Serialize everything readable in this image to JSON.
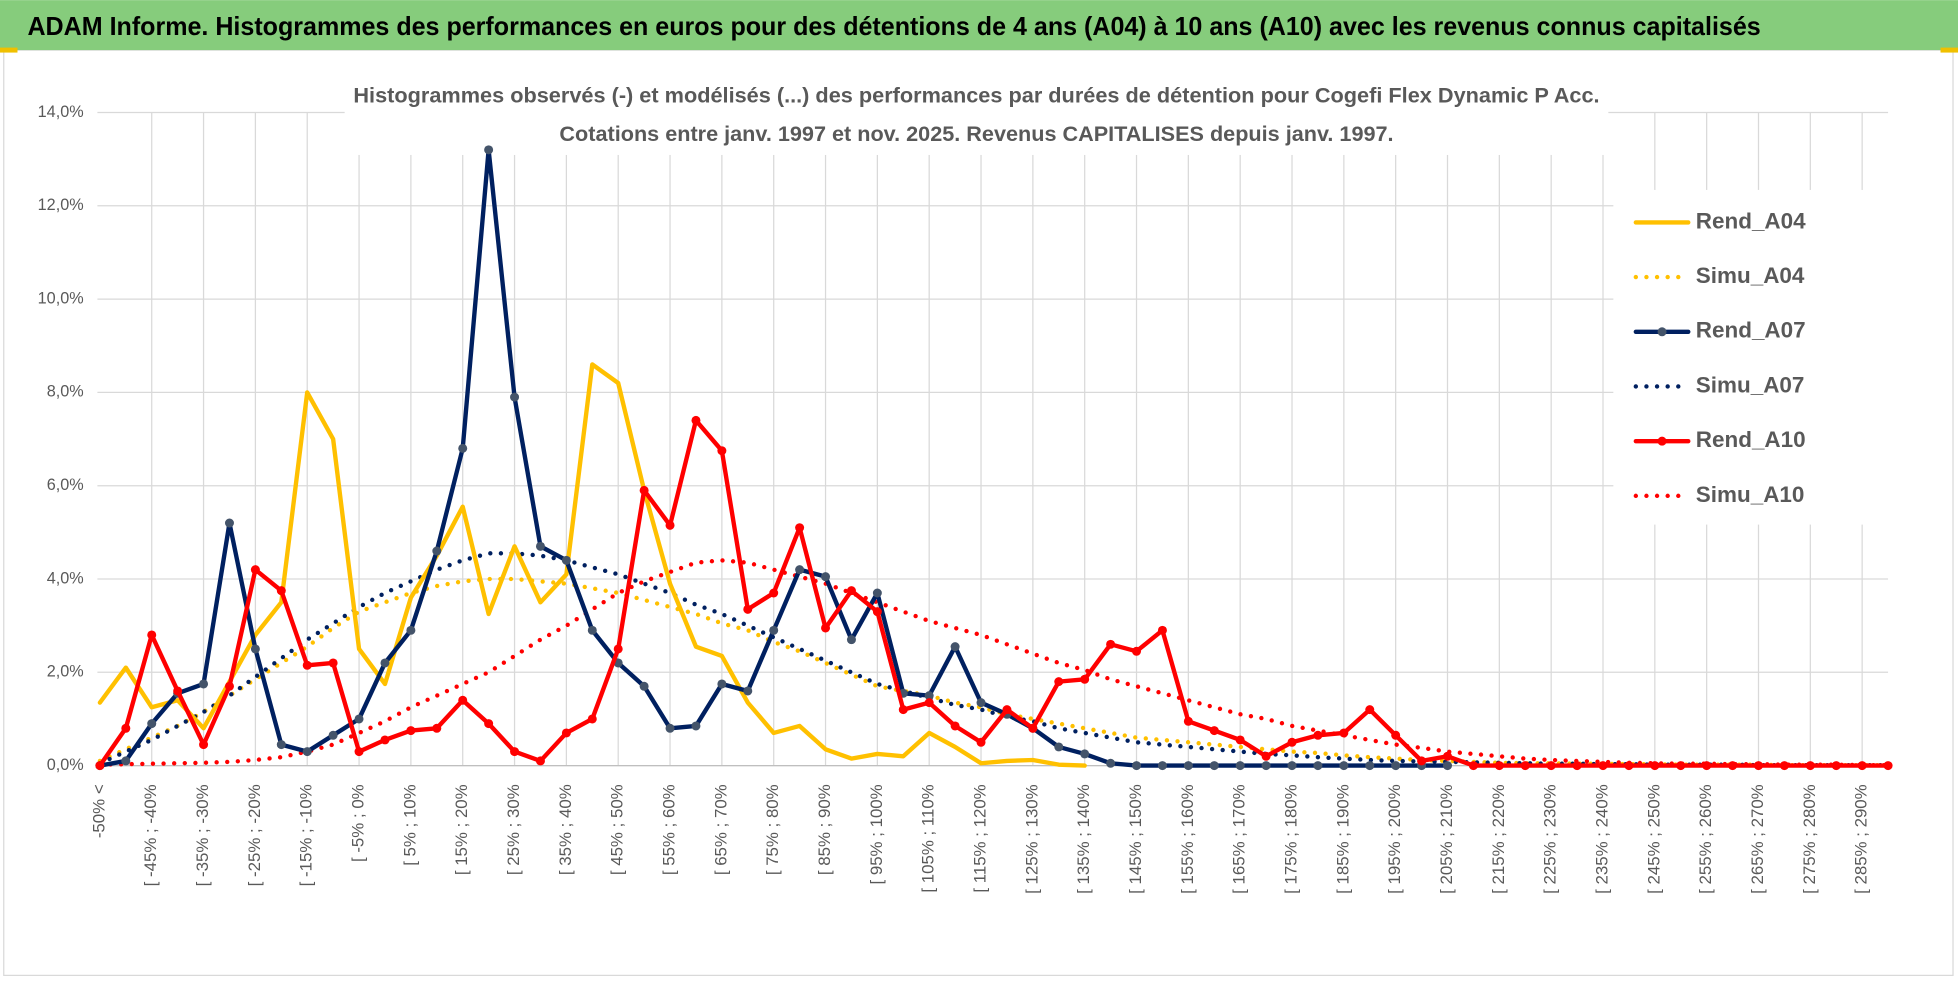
{
  "chart_data": {
    "type": "line",
    "title": "ADAM Informe. Histogrammes des performances en euros pour des détentions de 4 ans (A04) à 10 ans (A10) avec les revenus connus capitalisés",
    "subtitle": [
      "Histogrammes observés (-) et modélisés (...) des performances par durées de détention pour Cogefi Flex Dynamic P Acc.",
      "Cotations entre janv. 1997 et nov. 2025. Revenus CAPITALISES depuis janv. 1997."
    ],
    "categories": [
      "-50% <",
      null,
      "[ -45% ; -40%",
      null,
      "[ -35% ; -30%",
      null,
      "[ -25% ; -20%",
      null,
      "[ -15% ; -10%",
      null,
      "[ -5% ; 0%",
      null,
      "[ 5% ; 10%",
      null,
      "[ 15% ; 20%",
      null,
      "[ 25% ; 30%",
      null,
      "[ 35% ; 40%",
      null,
      "[ 45% ; 50%",
      null,
      "[ 55% ; 60%",
      null,
      "[ 65% ; 70%",
      null,
      "[ 75% ; 80%",
      null,
      "[ 85% ; 90%",
      null,
      "[ 95% ; 100%",
      null,
      "[ 105% ; 110%",
      null,
      "[ 115% ; 120%",
      null,
      "[ 125% ; 130%",
      null,
      "[ 135% ; 140%",
      null,
      "[ 145% ; 150%",
      null,
      "[ 155% ; 160%",
      null,
      "[ 165% ; 170%",
      null,
      "[ 175% ; 180%",
      null,
      "[ 185% ; 190%",
      null,
      "[ 195% ; 200%",
      null,
      "[ 205% ; 210%",
      null,
      "[ 215% ; 220%",
      null,
      "[ 225% ; 230%",
      null,
      "[ 235% ; 240%",
      null,
      "[ 245% ; 250%",
      null,
      "[ 255% ; 260%",
      null,
      "[ 265% ; 270%",
      null,
      "[ 275% ; 280%",
      null,
      "[ 285% ; 290%",
      null
    ],
    "series": [
      {
        "name": "Rend_A04",
        "color": "#ffc000",
        "dash": "solid",
        "marker": false,
        "values": [
          1.35,
          2.1,
          1.25,
          1.4,
          0.8,
          1.8,
          2.8,
          3.5,
          8.0,
          7.0,
          2.5,
          1.75,
          3.6,
          4.5,
          5.55,
          3.25,
          4.7,
          3.5,
          4.1,
          8.6,
          8.2,
          5.9,
          3.9,
          2.55,
          2.35,
          1.35,
          0.7,
          0.85,
          0.35,
          0.15,
          0.25,
          0.2,
          0.7,
          0.4,
          0.05,
          0.1,
          0.12,
          0.02,
          0,
          null,
          null,
          null,
          null,
          null,
          null,
          null,
          null,
          null,
          null,
          null,
          null,
          null,
          null,
          null,
          null,
          null,
          null,
          null,
          null,
          null,
          null,
          null,
          null,
          null,
          null,
          null,
          null,
          null,
          null,
          null
        ]
      },
      {
        "name": "Simu_A04",
        "color": "#ffc000",
        "dash": "dotted",
        "marker": false,
        "values": [
          0.1,
          0.35,
          0.6,
          0.85,
          1.15,
          1.5,
          1.85,
          2.2,
          2.55,
          2.95,
          3.3,
          3.5,
          3.7,
          3.85,
          3.95,
          4.0,
          4.0,
          3.95,
          3.9,
          3.8,
          3.7,
          3.55,
          3.4,
          3.25,
          3.05,
          2.9,
          2.65,
          2.45,
          2.2,
          1.95,
          1.7,
          1.6,
          1.5,
          1.35,
          1.25,
          1.1,
          1.0,
          0.9,
          0.8,
          0.7,
          0.6,
          0.55,
          0.5,
          0.45,
          0.4,
          0.35,
          0.3,
          0.27,
          0.22,
          0.18,
          0.15,
          0.12,
          0.1,
          0.08,
          0.06,
          0.05,
          0.05,
          0.04,
          0.04,
          0.03,
          0.03,
          0.02,
          0.02,
          0.02,
          0.02,
          0.01,
          0.01,
          0.01,
          0.01,
          0.01
        ]
      },
      {
        "name": "Rend_A07",
        "color": "#002060",
        "dash": "solid",
        "marker": true,
        "marker_color": "#44546a",
        "values": [
          0,
          0.1,
          0.9,
          1.55,
          1.75,
          5.2,
          2.5,
          0.45,
          0.3,
          0.65,
          1.0,
          2.2,
          2.9,
          4.6,
          6.8,
          13.2,
          7.9,
          4.7,
          4.4,
          2.9,
          2.2,
          1.7,
          0.8,
          0.85,
          1.75,
          1.6,
          2.9,
          4.2,
          4.05,
          2.7,
          3.7,
          1.55,
          1.5,
          2.55,
          1.35,
          1.1,
          0.8,
          0.4,
          0.25,
          0.05,
          0,
          0,
          0,
          0,
          0,
          0,
          0,
          0,
          0,
          0,
          0,
          0,
          0,
          null,
          null,
          null,
          null,
          null,
          null,
          null,
          null,
          null,
          null,
          null,
          null,
          null,
          null,
          null,
          null,
          null
        ]
      },
      {
        "name": "Simu_A07",
        "color": "#002060",
        "dash": "dotted",
        "marker": false,
        "values": [
          0.05,
          0.3,
          0.55,
          0.85,
          1.15,
          1.5,
          1.9,
          2.3,
          2.7,
          3.05,
          3.4,
          3.7,
          3.95,
          4.2,
          4.4,
          4.55,
          4.55,
          4.5,
          4.4,
          4.25,
          4.1,
          3.9,
          3.7,
          3.45,
          3.25,
          3.0,
          2.75,
          2.5,
          2.25,
          2.0,
          1.75,
          1.6,
          1.45,
          1.3,
          1.2,
          1.05,
          0.95,
          0.8,
          0.7,
          0.6,
          0.5,
          0.45,
          0.4,
          0.35,
          0.3,
          0.25,
          0.22,
          0.18,
          0.15,
          0.12,
          0.1,
          0.09,
          0.08,
          0.07,
          0.06,
          0.05,
          0.04,
          0.04,
          0.03,
          0.03,
          0.02,
          0.02,
          0.02,
          0.02,
          0.01,
          0.01,
          0.01,
          0.01,
          0.01,
          0.01
        ]
      },
      {
        "name": "Rend_A10",
        "color": "#ff0000",
        "dash": "solid",
        "marker": true,
        "marker_color": "#ff0000",
        "values": [
          0,
          0.8,
          2.8,
          1.6,
          0.45,
          1.7,
          4.2,
          3.75,
          2.15,
          2.2,
          0.3,
          0.55,
          0.75,
          0.8,
          1.4,
          0.9,
          0.3,
          0.1,
          0.7,
          1.0,
          2.5,
          5.9,
          5.15,
          7.4,
          6.75,
          3.35,
          3.7,
          5.1,
          2.95,
          3.75,
          3.3,
          1.2,
          1.35,
          0.85,
          0.5,
          1.2,
          0.8,
          1.8,
          1.85,
          2.6,
          2.45,
          2.9,
          0.95,
          0.75,
          0.55,
          0.2,
          0.5,
          0.65,
          0.7,
          1.2,
          0.65,
          0.1,
          0.2,
          0,
          0,
          0,
          0,
          0,
          0,
          0,
          0,
          0,
          0,
          0,
          0,
          0,
          0,
          0,
          0,
          0
        ]
      },
      {
        "name": "Simu_A10",
        "color": "#ff0000",
        "dash": "dotted",
        "marker": false,
        "values": [
          0.02,
          0.03,
          0.04,
          0.05,
          0.06,
          0.08,
          0.12,
          0.18,
          0.3,
          0.45,
          0.7,
          0.95,
          1.25,
          1.5,
          1.75,
          2.0,
          2.35,
          2.7,
          3.0,
          3.35,
          3.7,
          3.95,
          4.15,
          4.35,
          4.4,
          4.35,
          4.2,
          4.05,
          3.9,
          3.7,
          3.5,
          3.3,
          3.1,
          2.95,
          2.8,
          2.6,
          2.4,
          2.2,
          2.05,
          1.85,
          1.7,
          1.55,
          1.4,
          1.25,
          1.1,
          1.0,
          0.85,
          0.75,
          0.65,
          0.55,
          0.45,
          0.38,
          0.3,
          0.25,
          0.2,
          0.15,
          0.12,
          0.1,
          0.08,
          0.06,
          0.05,
          0.04,
          0.04,
          0.03,
          0.03,
          0.02,
          0.02,
          0.02,
          0.01,
          0.01
        ]
      }
    ],
    "ylim": [
      0,
      14
    ],
    "yticks": [
      {
        "value": 0,
        "label": "0,0%"
      },
      {
        "value": 2,
        "label": "2,0%"
      },
      {
        "value": 4,
        "label": "4,0%"
      },
      {
        "value": 6,
        "label": "6,0%"
      },
      {
        "value": 8,
        "label": "8,0%"
      },
      {
        "value": 10,
        "label": "10,0%"
      },
      {
        "value": 12,
        "label": "12,0%"
      },
      {
        "value": 14,
        "label": "14,0%"
      }
    ],
    "grid": true,
    "legend": "right"
  }
}
